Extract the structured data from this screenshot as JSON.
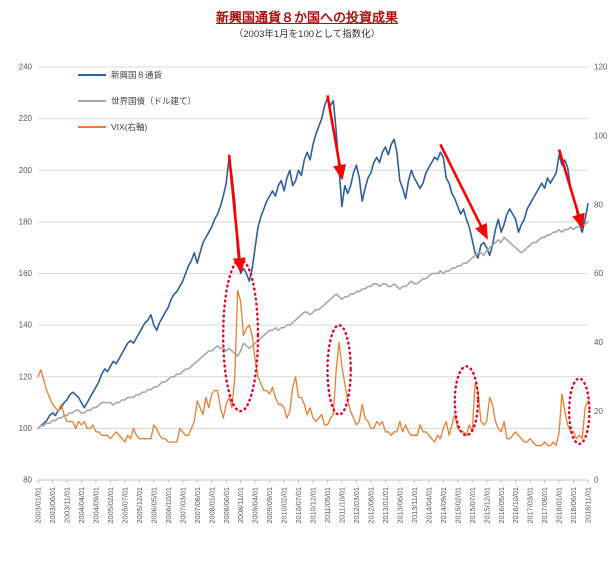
{
  "chart_data": {
    "type": "line",
    "title": "新興国通貨８か国への投資成果",
    "subtitle": "（2003年1月を100として指数化）",
    "colors": {
      "grid": "#d9d9d9",
      "axis_line": "#bfbfbf",
      "axis_text": "#595959",
      "title": "#b01010",
      "arrow": "#ff0000",
      "ellipse": "#e4002b"
    },
    "left_axis": {
      "min": 80,
      "max": 240,
      "step": 20,
      "ticks": [
        80,
        100,
        120,
        140,
        160,
        180,
        200,
        220,
        240
      ]
    },
    "right_axis": {
      "min": 0,
      "max": 120,
      "step": 20,
      "ticks": [
        0,
        20,
        40,
        60,
        80,
        100,
        120
      ]
    },
    "x_tick_labels": [
      "2003/01/01",
      "2003/06/01",
      "2003/11/01",
      "2004/04/01",
      "2004/09/01",
      "2005/02/01",
      "2005/07/01",
      "2005/12/01",
      "2006/05/01",
      "2006/10/01",
      "2007/03/01",
      "2007/08/01",
      "2008/01/01",
      "2008/06/01",
      "2008/11/01",
      "2009/04/01",
      "2009/09/01",
      "2010/02/01",
      "2010/07/01",
      "2010/12/01",
      "2011/05/01",
      "2011/10/01",
      "2012/03/01",
      "2012/08/01",
      "2013/01/01",
      "2013/06/01",
      "2013/11/01",
      "2014/04/01",
      "2014/09/01",
      "2015/02/01",
      "2015/07/01",
      "2015/12/01",
      "2016/05/01",
      "2016/10/01",
      "2017/03/01",
      "2017/08/01",
      "2018/01/01",
      "2018/06/01",
      "2018/11/01"
    ],
    "x_tick_every_n_months": 5,
    "series": [
      {
        "id": "em8",
        "name": "新興国８通貨",
        "axis": "left",
        "color": "#2e5fa3",
        "width": 1.6,
        "values": [
          100,
          101,
          102,
          103,
          105,
          106,
          105,
          107,
          108,
          110,
          111,
          113,
          114,
          113,
          112,
          110,
          108,
          110,
          112,
          114,
          116,
          118,
          121,
          123,
          122,
          124,
          126,
          125,
          127,
          129,
          131,
          133,
          134,
          133,
          135,
          137,
          139,
          141,
          142,
          144,
          140,
          138,
          141,
          143,
          145,
          147,
          150,
          152,
          153,
          155,
          157,
          160,
          163,
          165,
          168,
          164,
          168,
          172,
          174,
          176,
          178,
          181,
          183,
          186,
          190,
          195,
          205,
          198,
          188,
          168,
          160,
          162,
          160,
          157,
          162,
          170,
          178,
          182,
          185,
          188,
          190,
          192,
          190,
          194,
          196,
          192,
          197,
          200,
          194,
          196,
          200,
          198,
          204,
          207,
          204,
          210,
          214,
          217,
          220,
          225,
          228,
          225,
          227,
          215,
          200,
          186,
          194,
          191,
          194,
          199,
          202,
          197,
          188,
          193,
          197,
          199,
          203,
          205,
          203,
          207,
          209,
          206,
          210,
          212,
          207,
          196,
          193,
          189,
          196,
          200,
          197,
          195,
          193,
          195,
          199,
          201,
          203,
          205,
          204,
          207,
          205,
          197,
          195,
          191,
          189,
          186,
          183,
          185,
          181,
          178,
          173,
          168,
          166,
          171,
          172,
          170,
          167,
          171,
          177,
          181,
          176,
          179,
          183,
          185,
          183,
          181,
          176,
          179,
          181,
          185,
          187,
          189,
          191,
          193,
          195,
          193,
          197,
          195,
          197,
          199,
          206,
          202,
          204,
          201,
          193,
          189,
          185,
          179,
          176,
          181,
          187
        ]
      },
      {
        "id": "world-bonds",
        "name": "世界国債（ドル建て）",
        "axis": "left",
        "color": "#a8a8a8",
        "width": 1.6,
        "values": [
          100,
          101,
          101,
          102,
          102,
          103,
          103,
          104,
          104,
          105,
          105,
          106,
          106,
          107,
          107,
          106,
          106,
          107,
          107,
          108,
          108,
          109,
          110,
          110,
          110,
          110,
          109,
          110,
          110,
          111,
          111,
          112,
          112,
          112,
          113,
          113,
          114,
          114,
          115,
          115,
          116,
          116,
          117,
          118,
          118,
          119,
          120,
          120,
          121,
          121,
          122,
          123,
          123,
          124,
          125,
          126,
          127,
          128,
          129,
          130,
          130,
          131,
          132,
          131,
          131,
          130,
          131,
          130,
          129,
          128,
          130,
          133,
          132,
          131,
          132,
          133,
          134,
          135,
          136,
          137,
          138,
          138,
          139,
          138,
          139,
          139,
          140,
          140,
          141,
          142,
          143,
          144,
          145,
          145,
          144,
          145,
          146,
          146,
          147,
          148,
          149,
          150,
          151,
          152,
          151,
          150,
          151,
          151,
          152,
          152,
          153,
          153,
          154,
          154,
          155,
          155,
          156,
          156,
          155,
          156,
          156,
          155,
          155,
          156,
          155,
          154,
          155,
          155,
          156,
          157,
          156,
          156,
          157,
          158,
          158,
          159,
          160,
          160,
          160,
          161,
          160,
          161,
          161,
          162,
          162,
          163,
          163,
          164,
          164,
          165,
          166,
          167,
          168,
          168,
          167,
          169,
          170,
          171,
          172,
          173,
          172,
          174,
          173,
          172,
          171,
          170,
          169,
          168,
          169,
          170,
          171,
          172,
          172,
          173,
          174,
          174,
          175,
          175,
          176,
          176,
          177,
          176,
          177,
          177,
          178,
          177,
          178,
          178,
          179,
          179,
          180
        ]
      },
      {
        "id": "vix",
        "name": "VIX(右軸)",
        "axis": "right",
        "color": "#ed7d31",
        "width": 1.3,
        "values": [
          30,
          32,
          29,
          26,
          24,
          22,
          21,
          20,
          22,
          19,
          17,
          17,
          17,
          15,
          17,
          16,
          17,
          15,
          15,
          16,
          14,
          14,
          13,
          13,
          13,
          12,
          13,
          14,
          13,
          12,
          11,
          13,
          12,
          15,
          13,
          12,
          12,
          12,
          12,
          12,
          16,
          15,
          13,
          12,
          12,
          11,
          11,
          11,
          11,
          15,
          14,
          13,
          13,
          15,
          17,
          23,
          21,
          19,
          24,
          21,
          25,
          26,
          26,
          21,
          18,
          22,
          24,
          21,
          30,
          55,
          52,
          42,
          44,
          45,
          42,
          35,
          30,
          28,
          26,
          26,
          25,
          27,
          24,
          22,
          22,
          21,
          18,
          20,
          27,
          30,
          24,
          24,
          22,
          19,
          21,
          18,
          17,
          18,
          19,
          16,
          16,
          18,
          19,
          32,
          40,
          33,
          28,
          23,
          20,
          18,
          16,
          17,
          22,
          18,
          17,
          15,
          15,
          17,
          16,
          17,
          14,
          14,
          13,
          14,
          14,
          17,
          14,
          16,
          14,
          13,
          13,
          13,
          16,
          14,
          14,
          13,
          12,
          11,
          13,
          12,
          15,
          17,
          13,
          16,
          19,
          15,
          14,
          14,
          13,
          16,
          14,
          28,
          26,
          17,
          16,
          17,
          24,
          22,
          17,
          15,
          14,
          17,
          12,
          12,
          13,
          14,
          13,
          12,
          11,
          11,
          12,
          11,
          10,
          10,
          10,
          11,
          10,
          10,
          11,
          10,
          14,
          25,
          20,
          16,
          14,
          14,
          12,
          13,
          12,
          21,
          23
        ]
      }
    ],
    "annotations": {
      "arrows": [
        {
          "from_month": 66,
          "from_value": 206,
          "to_month": 70,
          "to_value": 161
        },
        {
          "from_month": 100,
          "from_value": 229,
          "to_month": 105,
          "to_value": 197
        },
        {
          "from_month": 139,
          "from_value": 210,
          "to_month": 155,
          "to_value": 174
        },
        {
          "from_month": 180,
          "from_value": 208,
          "to_month": 188,
          "to_value": 178
        }
      ],
      "ellipses": [
        {
          "center_month": 70,
          "center_vix": 42,
          "rx_months": 6,
          "ry_vix": 22
        },
        {
          "center_month": 104,
          "center_vix": 32,
          "rx_months": 4,
          "ry_vix": 13
        },
        {
          "center_month": 148,
          "center_vix": 23,
          "rx_months": 4,
          "ry_vix": 10
        },
        {
          "center_month": 187,
          "center_vix": 20,
          "rx_months": 3.5,
          "ry_vix": 9.5
        }
      ]
    },
    "legend": {
      "position": "top-left-inside",
      "entries": [
        "新興国８通貨",
        "世界国債（ドル建て）",
        "VIX(右軸)"
      ]
    }
  }
}
